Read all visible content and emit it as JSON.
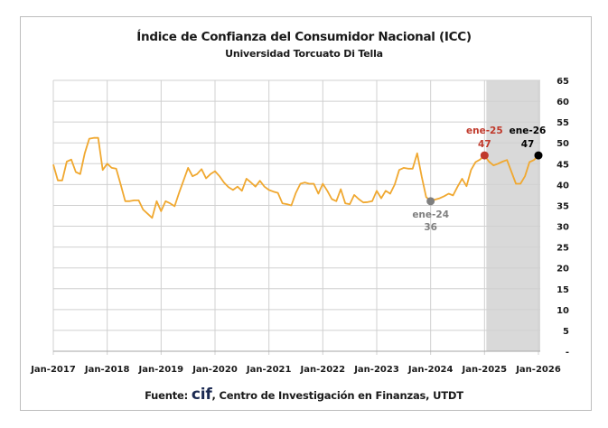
{
  "chart_data": {
    "type": "line",
    "title": "Índice de Confianza del Consumidor Nacional (ICC)",
    "subtitle": "Universidad Torcuato Di Tella",
    "source": {
      "prefix": "Fuente: ",
      "logo": "cif",
      "text": ", Centro de Investigación en Finanzas, UTDT"
    },
    "xlabel": "",
    "ylabel": "",
    "ylim": [
      0,
      65
    ],
    "yticks": [
      0,
      5,
      10,
      15,
      20,
      25,
      30,
      35,
      40,
      45,
      50,
      55,
      60,
      65
    ],
    "ytick_labels": [
      "-",
      "5",
      "10",
      "15",
      "20",
      "25",
      "30",
      "35",
      "40",
      "45",
      "50",
      "55",
      "60",
      "65"
    ],
    "y_axis_position": "right",
    "xlim": [
      "2017-01",
      "2026-01"
    ],
    "xticks": [
      "2017-01",
      "2018-01",
      "2019-01",
      "2020-01",
      "2021-01",
      "2022-01",
      "2023-01",
      "2024-01",
      "2025-01",
      "2026-01"
    ],
    "xtick_labels": [
      "Jan-2017",
      "Jan-2018",
      "Jan-2019",
      "Jan-2020",
      "Jan-2021",
      "Jan-2022",
      "Jan-2023",
      "Jan-2024",
      "Jan-2025",
      "Jan-2026"
    ],
    "grid": true,
    "shaded_period": [
      "2025-01",
      "2026-01"
    ],
    "colors": {
      "line": "#f0a830",
      "shade": "#d9d9d9",
      "grid": "#d0d0d0",
      "ann_2024": "#7f7f7f",
      "ann_2025": "#c0392b",
      "ann_2026": "#000000"
    },
    "x": [
      "2017-01",
      "2017-02",
      "2017-03",
      "2017-04",
      "2017-05",
      "2017-06",
      "2017-07",
      "2017-08",
      "2017-09",
      "2017-10",
      "2017-11",
      "2017-12",
      "2018-01",
      "2018-02",
      "2018-03",
      "2018-04",
      "2018-05",
      "2018-06",
      "2018-07",
      "2018-08",
      "2018-09",
      "2018-10",
      "2018-11",
      "2018-12",
      "2019-01",
      "2019-02",
      "2019-03",
      "2019-04",
      "2019-05",
      "2019-06",
      "2019-07",
      "2019-08",
      "2019-09",
      "2019-10",
      "2019-11",
      "2019-12",
      "2020-01",
      "2020-02",
      "2020-03",
      "2020-04",
      "2020-05",
      "2020-06",
      "2020-07",
      "2020-08",
      "2020-09",
      "2020-10",
      "2020-11",
      "2020-12",
      "2021-01",
      "2021-02",
      "2021-03",
      "2021-04",
      "2021-05",
      "2021-06",
      "2021-07",
      "2021-08",
      "2021-09",
      "2021-10",
      "2021-11",
      "2021-12",
      "2022-01",
      "2022-02",
      "2022-03",
      "2022-04",
      "2022-05",
      "2022-06",
      "2022-07",
      "2022-08",
      "2022-09",
      "2022-10",
      "2022-11",
      "2022-12",
      "2023-01",
      "2023-02",
      "2023-03",
      "2023-04",
      "2023-05",
      "2023-06",
      "2023-07",
      "2023-08",
      "2023-09",
      "2023-10",
      "2023-11",
      "2023-12",
      "2024-01",
      "2024-02",
      "2024-03",
      "2024-04",
      "2024-05",
      "2024-06",
      "2024-07",
      "2024-08",
      "2024-09",
      "2024-10",
      "2024-11",
      "2024-12",
      "2025-01",
      "2025-02",
      "2025-03",
      "2025-04",
      "2025-05",
      "2025-06",
      "2025-07",
      "2025-08",
      "2025-09",
      "2025-10",
      "2025-11",
      "2025-12",
      "2026-01"
    ],
    "values": [
      44.8,
      41,
      41,
      45.5,
      46,
      43,
      42.5,
      47.5,
      51,
      51.2,
      51.2,
      43.5,
      45,
      44,
      43.8,
      40,
      36,
      36,
      36.2,
      36.2,
      34,
      33,
      32,
      36,
      33.6,
      36,
      35.5,
      34.8,
      38,
      41,
      44,
      42,
      42.5,
      43.7,
      41.5,
      42.5,
      43.2,
      42,
      40.5,
      39.4,
      38.7,
      39.5,
      38.5,
      41.4,
      40.5,
      39.5,
      40.9,
      39.5,
      38.7,
      38.3,
      38,
      35.5,
      35.3,
      35,
      38,
      40.2,
      40.5,
      40.2,
      40.2,
      37.8,
      40.2,
      38.5,
      36.5,
      36,
      38.9,
      35.5,
      35.3,
      37.5,
      36.5,
      35.7,
      35.8,
      36,
      38.5,
      36.7,
      38.5,
      37.8,
      40,
      43.5,
      44,
      43.8,
      43.8,
      47.5,
      42,
      37,
      36,
      36.4,
      36.7,
      37.2,
      37.8,
      37.4,
      39.5,
      41.4,
      39.6,
      43.5,
      45.4,
      46,
      47,
      45.5,
      44.6,
      45,
      45.5,
      45.9,
      43,
      40.2,
      40.2,
      42,
      45.4,
      45.9,
      47
    ],
    "annotations": [
      {
        "x": "2024-01",
        "label": "ene-24",
        "value_label": "36",
        "position": "below"
      },
      {
        "x": "2025-01",
        "label": "ene-25",
        "value_label": "47",
        "position": "above"
      },
      {
        "x": "2026-01",
        "label": "ene-26",
        "value_label": "47",
        "position": "above"
      }
    ]
  }
}
